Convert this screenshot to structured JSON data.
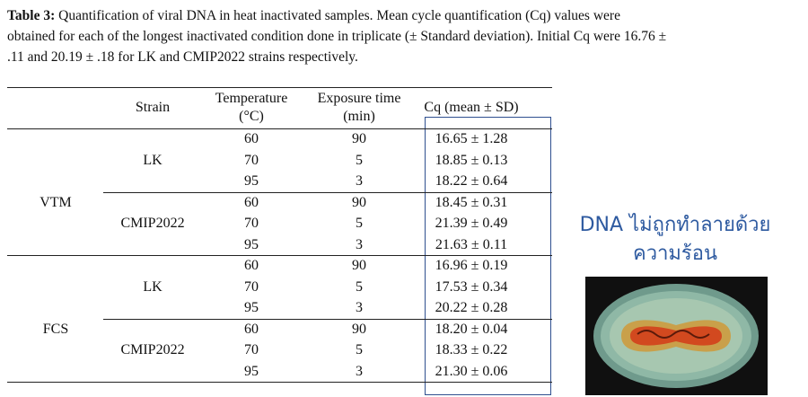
{
  "caption": {
    "label": "Table 3:",
    "text": "Quantification of viral DNA in heat inactivated samples. Mean cycle quantification (Cq) values were obtained for each of the longest inactivated condition done in triplicate (± Standard deviation). Initial Cq were 16.76 ± .11 and 20.19 ± .18 for LK and CMIP2022 strains respectively."
  },
  "table": {
    "headers": [
      "Strain",
      "Temperature (°C)",
      "Exposure time (min)",
      "Cq (mean ± SD)"
    ],
    "groups": [
      {
        "medium": "VTM",
        "strains": [
          {
            "strain": "LK",
            "rows": [
              [
                60,
                90,
                "16.65 ± 1.28"
              ],
              [
                70,
                5,
                "18.85 ± 0.13"
              ],
              [
                95,
                3,
                "18.22 ± 0.64"
              ]
            ]
          },
          {
            "strain": "CMIP2022",
            "rows": [
              [
                60,
                90,
                "18.45 ± 0.31"
              ],
              [
                70,
                5,
                "21.39 ± 0.49"
              ],
              [
                95,
                3,
                "21.63 ± 0.11"
              ]
            ]
          }
        ]
      },
      {
        "medium": "FCS",
        "strains": [
          {
            "strain": "LK",
            "rows": [
              [
                60,
                90,
                "16.96 ± 0.19"
              ],
              [
                70,
                5,
                "17.53 ± 0.34"
              ],
              [
                95,
                3,
                "20.22 ± 0.28"
              ]
            ]
          },
          {
            "strain": "CMIP2022",
            "rows": [
              [
                60,
                90,
                "18.20 ± 0.04"
              ],
              [
                70,
                5,
                "18.33 ± 0.22"
              ],
              [
                95,
                3,
                "21.30 ± 0.06"
              ]
            ]
          }
        ]
      }
    ]
  },
  "note": {
    "lines": [
      "DNA ไม่ถูกทำลายด้วย",
      "ความร้อน"
    ]
  }
}
